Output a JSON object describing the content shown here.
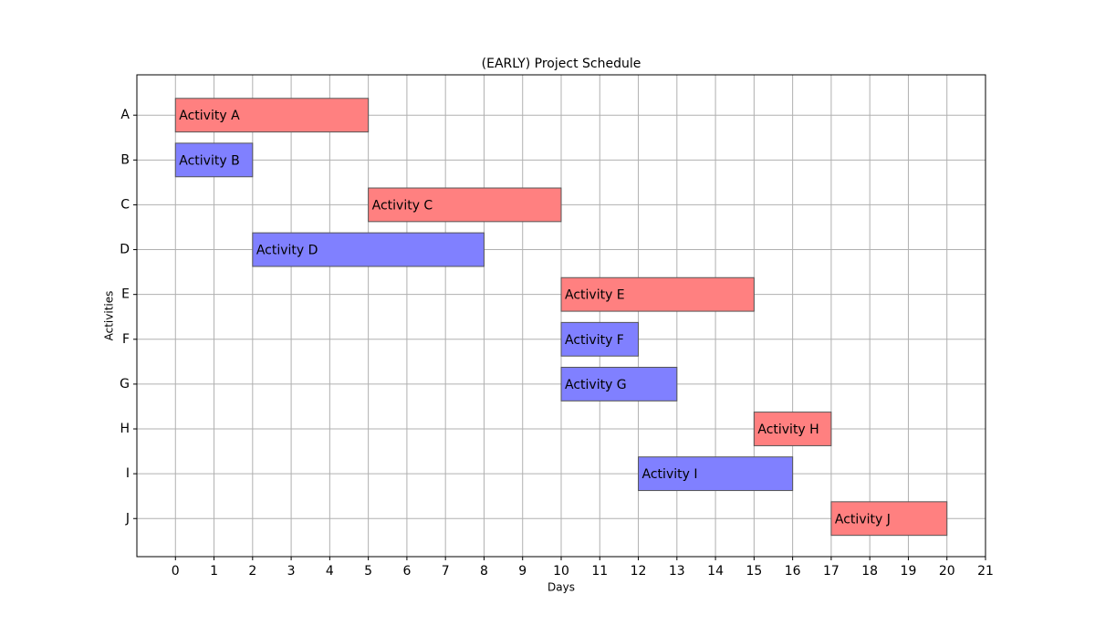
{
  "chart_data": {
    "type": "gantt",
    "title": "(EARLY) Project Schedule",
    "xlabel": "Days",
    "ylabel": "Activities",
    "categories": [
      "A",
      "B",
      "C",
      "D",
      "E",
      "F",
      "G",
      "H",
      "I",
      "J"
    ],
    "labels": [
      "Activity A",
      "Activity B",
      "Activity C",
      "Activity D",
      "Activity E",
      "Activity F",
      "Activity G",
      "Activity H",
      "Activity I",
      "Activity J"
    ],
    "start": [
      0,
      0,
      5,
      2,
      10,
      10,
      10,
      15,
      12,
      17
    ],
    "end": [
      5,
      2,
      10,
      8,
      15,
      12,
      13,
      17,
      16,
      20
    ],
    "colors": [
      "#ff8080",
      "#8080ff",
      "#ff8080",
      "#8080ff",
      "#ff8080",
      "#8080ff",
      "#8080ff",
      "#ff8080",
      "#8080ff",
      "#ff8080"
    ],
    "xlim": [
      -1,
      21
    ],
    "xticks": [
      0,
      1,
      2,
      3,
      4,
      5,
      6,
      7,
      8,
      9,
      10,
      11,
      12,
      13,
      14,
      15,
      16,
      17,
      18,
      19,
      20,
      21
    ],
    "grid": true
  }
}
